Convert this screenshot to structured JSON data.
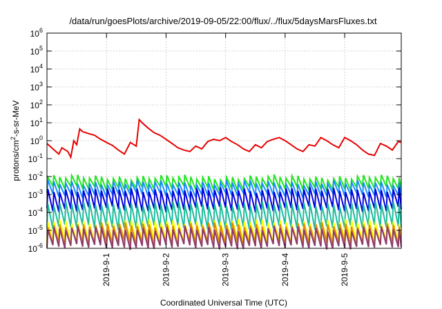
{
  "chart_data": {
    "type": "line",
    "title": "/data/run/goesPlots/archive/2019-09-05/22:00/flux/../flux/5daysMarsFluxes.txt",
    "xlabel": "Coordinated Universal Time (UTC)",
    "ylabel_parts": [
      "protons/cm",
      "2",
      "-s-sr-MeV"
    ],
    "yscale": "log",
    "ylim": [
      1e-06,
      1000000.0
    ],
    "xlim": [
      0,
      5.95
    ],
    "x_units": "days after 2019-08-31 00:00 UTC",
    "grid": true,
    "y_ticks": [
      {
        "value": 1e-06,
        "base": "10",
        "exp": "-6"
      },
      {
        "value": 1e-05,
        "base": "10",
        "exp": "-5"
      },
      {
        "value": 0.0001,
        "base": "10",
        "exp": "-4"
      },
      {
        "value": 0.001,
        "base": "10",
        "exp": "-3"
      },
      {
        "value": 0.01,
        "base": "10",
        "exp": "-2"
      },
      {
        "value": 0.1,
        "base": "10",
        "exp": "-1"
      },
      {
        "value": 1.0,
        "base": "10",
        "exp": "0"
      },
      {
        "value": 10.0,
        "base": "10",
        "exp": "1"
      },
      {
        "value": 100.0,
        "base": "10",
        "exp": "2"
      },
      {
        "value": 1000.0,
        "base": "10",
        "exp": "3"
      },
      {
        "value": 10000.0,
        "base": "10",
        "exp": "4"
      },
      {
        "value": 100000.0,
        "base": "10",
        "exp": "5"
      },
      {
        "value": 1000000.0,
        "base": "10",
        "exp": "6"
      }
    ],
    "x_ticks": [
      {
        "value": 1,
        "label": "2019-9-1"
      },
      {
        "value": 2,
        "label": "2019-9-2"
      },
      {
        "value": 3,
        "label": "2019-9-3"
      },
      {
        "value": 4,
        "label": "2019-9-4"
      },
      {
        "value": 5,
        "label": "2019-9-5"
      }
    ],
    "series": [
      {
        "color": "#e60000",
        "pattern": "sawtooth-decay",
        "x": [
          0.0,
          0.1,
          0.2,
          0.25,
          0.35,
          0.4,
          0.45,
          0.5,
          0.55,
          0.6,
          0.7,
          0.8,
          0.9,
          1.0,
          1.1,
          1.2,
          1.3,
          1.4,
          1.5,
          1.55,
          1.6,
          1.7,
          1.8,
          1.9,
          2.0,
          2.1,
          2.2,
          2.3,
          2.4,
          2.5,
          2.6,
          2.7,
          2.8,
          2.9,
          3.0,
          3.1,
          3.2,
          3.3,
          3.4,
          3.5,
          3.6,
          3.7,
          3.8,
          3.9,
          4.0,
          4.1,
          4.2,
          4.3,
          4.4,
          4.5,
          4.6,
          4.7,
          4.8,
          4.9,
          5.0,
          5.1,
          5.2,
          5.3,
          5.4,
          5.5,
          5.6,
          5.7,
          5.8,
          5.9,
          5.95
        ],
        "y": [
          0.7,
          0.35,
          0.18,
          0.4,
          0.25,
          0.12,
          1.0,
          0.6,
          4.5,
          3.2,
          2.5,
          2.0,
          1.2,
          0.8,
          0.55,
          0.3,
          0.18,
          0.8,
          0.5,
          15.0,
          10.0,
          5.0,
          2.8,
          2.0,
          1.2,
          0.7,
          0.4,
          0.3,
          0.25,
          0.5,
          0.35,
          0.9,
          1.2,
          1.0,
          1.5,
          0.9,
          0.6,
          0.35,
          0.25,
          0.6,
          0.4,
          0.9,
          1.2,
          1.5,
          1.0,
          0.6,
          0.35,
          0.25,
          0.6,
          0.5,
          1.5,
          1.0,
          0.6,
          0.4,
          1.5,
          1.0,
          0.6,
          0.3,
          0.18,
          0.15,
          0.7,
          0.5,
          0.3,
          0.9,
          0.8
        ]
      },
      {
        "color": "#1ee61e",
        "pattern": "sawtooth",
        "period": 0.1,
        "peak": 0.009,
        "trough": 0.0022
      },
      {
        "color": "#1a8cff",
        "pattern": "sawtooth",
        "period": 0.1,
        "peak": 0.0045,
        "trough": 0.0009
      },
      {
        "color": "#0000dc",
        "pattern": "sawtooth",
        "period": 0.1,
        "peak": 0.0018,
        "trough": 0.00015
      },
      {
        "color": "#1abc9c",
        "pattern": "sawtooth",
        "period": 0.1,
        "peak": 0.0003,
        "trough": 1.5e-05
      },
      {
        "color": "#ffff00",
        "pattern": "sawtooth",
        "period": 0.1,
        "peak": 3e-05,
        "trough": 2.5e-06
      },
      {
        "color": "#e08a00",
        "pattern": "sawtooth",
        "period": 0.1,
        "peak": 2e-05,
        "trough": 1.8e-06
      },
      {
        "color": "#8e3a6c",
        "pattern": "sawtooth",
        "period": 0.1,
        "peak": 1.2e-05,
        "trough": 1.2e-06
      }
    ]
  }
}
